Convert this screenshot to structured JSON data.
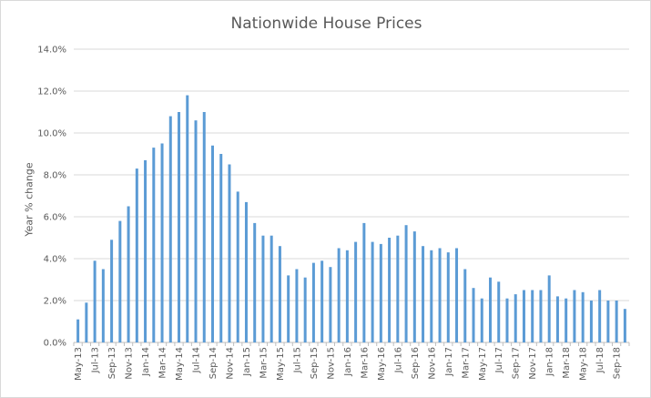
{
  "chart_data": {
    "type": "bar",
    "title": "Nationwide House Prices",
    "xlabel": "",
    "ylabel": "Year % change",
    "ylim": [
      0,
      14
    ],
    "y_tick_format": "percent_1dp",
    "y_ticks": [
      "0.0%",
      "2.0%",
      "4.0%",
      "6.0%",
      "8.0%",
      "10.0%",
      "12.0%",
      "14.0%"
    ],
    "grid": true,
    "legend": "none",
    "bar_color": "#5b9bd5",
    "categories": [
      "May-13",
      "Jun-13",
      "Jul-13",
      "Aug-13",
      "Sep-13",
      "Oct-13",
      "Nov-13",
      "Dec-13",
      "Jan-14",
      "Feb-14",
      "Mar-14",
      "Apr-14",
      "May-14",
      "Jun-14",
      "Jul-14",
      "Aug-14",
      "Sep-14",
      "Oct-14",
      "Nov-14",
      "Dec-14",
      "Jan-15",
      "Feb-15",
      "Mar-15",
      "Apr-15",
      "May-15",
      "Jun-15",
      "Jul-15",
      "Aug-15",
      "Sep-15",
      "Oct-15",
      "Nov-15",
      "Dec-15",
      "Jan-16",
      "Feb-16",
      "Mar-16",
      "Apr-16",
      "May-16",
      "Jun-16",
      "Jul-16",
      "Aug-16",
      "Sep-16",
      "Oct-16",
      "Nov-16",
      "Dec-16",
      "Jan-17",
      "Feb-17",
      "Mar-17",
      "Apr-17",
      "May-17",
      "Jun-17",
      "Jul-17",
      "Aug-17",
      "Sep-17",
      "Oct-17",
      "Nov-17",
      "Dec-17",
      "Jan-18",
      "Feb-18",
      "Mar-18",
      "Apr-18",
      "May-18",
      "Jun-18",
      "Jul-18",
      "Aug-18",
      "Sep-18",
      "Oct-18"
    ],
    "x_tick_labels": [
      "May-13",
      "Jul-13",
      "Sep-13",
      "Nov-13",
      "Jan-14",
      "Mar-14",
      "May-14",
      "Jul-14",
      "Sep-14",
      "Nov-14",
      "Jan-15",
      "Mar-15",
      "May-15",
      "Jul-15",
      "Sep-15",
      "Nov-15",
      "Jan-16",
      "Mar-16",
      "May-16",
      "Jul-16",
      "Sep-16",
      "Nov-16",
      "Jan-17",
      "Mar-17",
      "May-17",
      "Jul-17",
      "Sep-17",
      "Nov-17",
      "Jan-18",
      "Mar-18",
      "May-18",
      "Jul-18",
      "Sep-18"
    ],
    "values": [
      1.1,
      1.9,
      3.9,
      3.5,
      4.9,
      5.8,
      6.5,
      8.3,
      8.7,
      9.3,
      9.5,
      10.8,
      11.0,
      11.8,
      10.6,
      11.0,
      9.4,
      9.0,
      8.5,
      7.2,
      6.7,
      5.7,
      5.1,
      5.1,
      4.6,
      3.2,
      3.5,
      3.1,
      3.8,
      3.9,
      3.6,
      4.5,
      4.4,
      4.8,
      5.7,
      4.8,
      4.7,
      5.0,
      5.1,
      5.6,
      5.3,
      4.6,
      4.4,
      4.5,
      4.3,
      4.5,
      3.5,
      2.6,
      2.1,
      3.1,
      2.9,
      2.1,
      2.3,
      2.5,
      2.5,
      2.5,
      3.2,
      2.2,
      2.1,
      2.5,
      2.4,
      2.0,
      2.5,
      2.0,
      2.0,
      1.6
    ]
  }
}
